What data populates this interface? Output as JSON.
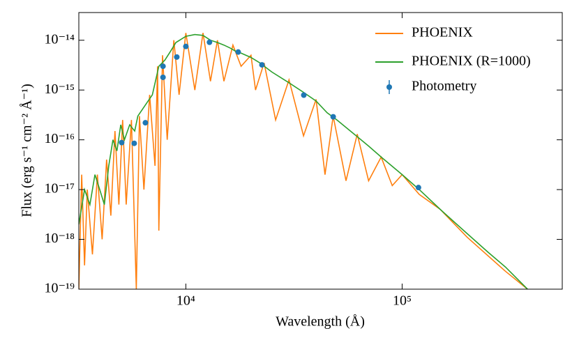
{
  "chart_data": {
    "type": "line",
    "xlabel": "Wavelength (Å)",
    "ylabel": "Flux (erg s⁻¹ cm⁻² Å⁻¹)",
    "xscale": "log",
    "yscale": "log",
    "xlim": [
      3200,
      550000
    ],
    "ylim": [
      1e-19,
      3.6e-14
    ],
    "xticks": [
      {
        "value": 10000,
        "label": "10⁴"
      },
      {
        "value": 100000,
        "label": "10⁵"
      }
    ],
    "yticks": [
      {
        "value": 1e-19,
        "label": "10⁻¹⁹"
      },
      {
        "value": 1e-18,
        "label": "10⁻¹⁸"
      },
      {
        "value": 1e-17,
        "label": "10⁻¹⁷"
      },
      {
        "value": 1e-16,
        "label": "10⁻¹⁶"
      },
      {
        "value": 1e-15,
        "label": "10⁻¹⁵"
      },
      {
        "value": 1e-14,
        "label": "10⁻¹⁴"
      }
    ],
    "legend": "upper right",
    "series": [
      {
        "name": "PHOENIX",
        "color": "#ff7f0e",
        "kind": "line",
        "x": [
          3200,
          3300,
          3400,
          3500,
          3700,
          3900,
          4100,
          4300,
          4500,
          4700,
          4900,
          5100,
          5300,
          5600,
          5900,
          6100,
          6400,
          6800,
          7200,
          7400,
          7500,
          7800,
          8200,
          8800,
          9300,
          10000,
          11000,
          12000,
          13000,
          14000,
          15000,
          16500,
          18000,
          20000,
          21000,
          23000,
          26000,
          30000,
          35000,
          40000,
          44000,
          48000,
          55000,
          62000,
          70000,
          80000,
          90000,
          100000,
          120000,
          150000,
          200000,
          300000,
          380000
        ],
        "values": [
          1e-19,
          2e-17,
          3e-19,
          1e-17,
          5e-19,
          2e-17,
          1e-18,
          4e-17,
          3e-18,
          1.5e-16,
          5e-18,
          2.5e-16,
          5e-18,
          2.5e-16,
          1e-19,
          3e-16,
          1e-17,
          8e-16,
          3e-17,
          3e-15,
          1.5e-18,
          5e-15,
          1e-16,
          1e-14,
          8e-16,
          1.4e-14,
          1e-15,
          1.4e-14,
          1.5e-15,
          1e-14,
          1.5e-15,
          8e-15,
          3e-15,
          5e-15,
          1e-15,
          3.5e-15,
          2.5e-16,
          1.6e-15,
          1.2e-16,
          6.5e-16,
          2e-17,
          3e-16,
          1.5e-17,
          1.3e-16,
          1.5e-17,
          4.5e-17,
          1.2e-17,
          2e-17,
          8e-18,
          4e-18,
          1.1e-18,
          2.3e-19,
          1e-19
        ]
      },
      {
        "name": "PHOENIX (R=1000)",
        "color": "#2ca02c",
        "kind": "line",
        "x": [
          3200,
          3400,
          3600,
          3800,
          4000,
          4200,
          4400,
          4600,
          4800,
          5000,
          5200,
          5500,
          5800,
          6000,
          6500,
          7000,
          7500,
          8000,
          8500,
          9000,
          10000,
          11000,
          12000,
          13000,
          14000,
          15000,
          16000,
          17000,
          18000,
          20000,
          22000,
          25000,
          30000,
          35000,
          40000,
          45000,
          50000,
          60000,
          70000,
          80000,
          100000,
          120000,
          150000,
          200000,
          250000,
          300000,
          380000
        ],
        "values": [
          2e-18,
          1e-17,
          5e-18,
          2e-17,
          1e-17,
          5e-18,
          3e-17,
          1e-16,
          6e-17,
          2e-16,
          1e-16,
          2e-16,
          1.5e-16,
          3e-16,
          5e-16,
          8e-16,
          3e-15,
          4e-15,
          6e-15,
          9e-15,
          1.2e-14,
          1.3e-14,
          1.25e-14,
          1e-14,
          9e-15,
          8e-15,
          7e-15,
          6e-15,
          5.5e-15,
          4.5e-15,
          3.5e-15,
          2.3e-15,
          1.4e-15,
          9e-16,
          6e-16,
          3.5e-16,
          2.5e-16,
          1.3e-16,
          7.5e-17,
          4.5e-17,
          2e-17,
          1e-17,
          4e-18,
          1.3e-18,
          5.5e-19,
          2.8e-19,
          1e-19
        ]
      },
      {
        "name": "Photometry",
        "color": "#1f77b4",
        "kind": "scatter",
        "x": [
          5050,
          5770,
          6500,
          7840,
          7840,
          9080,
          10000,
          12860,
          17460,
          22480,
          35100,
          48000,
          119000
        ],
        "values": [
          8.8e-17,
          8.5e-17,
          2.2e-16,
          1.8e-15,
          3e-15,
          4.6e-15,
          7.5e-15,
          9.1e-15,
          5.8e-15,
          3.2e-15,
          7.9e-16,
          2.9e-16,
          1.1e-17
        ]
      }
    ]
  }
}
